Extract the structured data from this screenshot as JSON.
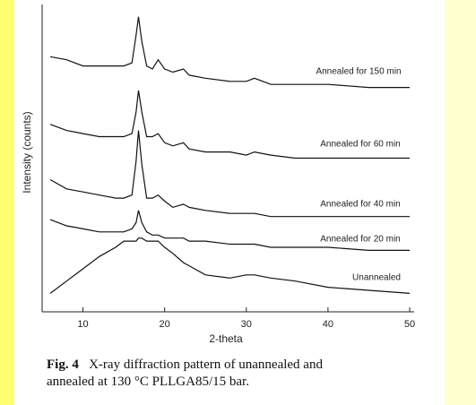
{
  "chart_data": {
    "type": "line",
    "x_label": "2-theta",
    "y_label": "Intensity (counts)",
    "x": [
      6,
      8,
      10,
      12,
      14,
      15,
      16,
      16.5,
      16.8,
      17.2,
      17.8,
      18.5,
      19.2,
      20,
      21,
      22.3,
      23,
      25,
      28,
      30,
      31,
      33,
      36,
      40,
      45,
      50
    ],
    "series": [
      {
        "name": "Annealed for 150 min",
        "color": "#111111",
        "values": [
          83,
          82,
          80,
          80,
          80,
          80,
          81,
          90,
          96,
          88,
          80,
          79,
          82,
          79,
          78,
          79,
          77,
          76,
          75,
          75,
          76,
          74,
          74,
          74,
          73,
          73
        ]
      },
      {
        "name": "Annealed for 60 min",
        "color": "#111111",
        "values": [
          61,
          59,
          58,
          57,
          57,
          57,
          58,
          65,
          72,
          65,
          57,
          57,
          58,
          55,
          54,
          55,
          53,
          52,
          52,
          51,
          52,
          51,
          50,
          50,
          50,
          50
        ]
      },
      {
        "name": "Annealed for 40 min",
        "color": "#111111",
        "values": [
          43,
          40,
          39,
          38,
          37,
          37,
          38,
          49,
          59,
          48,
          37,
          37,
          38,
          36,
          34,
          35,
          34,
          33,
          32,
          32,
          32,
          31,
          31,
          31,
          31,
          31
        ]
      },
      {
        "name": "Annealed for 20 min",
        "color": "#111111",
        "values": [
          30,
          28,
          27,
          26,
          26,
          26,
          27,
          29,
          33,
          29,
          26,
          25,
          25,
          24,
          24,
          24,
          23,
          23,
          22,
          22,
          22,
          21,
          21,
          21,
          20,
          20
        ]
      },
      {
        "name": "Unannealed",
        "color": "#111111",
        "values": [
          6,
          10,
          14,
          18,
          21,
          23,
          23,
          23,
          24,
          24,
          23,
          23,
          23,
          21,
          19,
          16,
          15,
          12,
          11,
          12,
          12,
          11,
          10,
          8,
          7,
          6
        ]
      }
    ],
    "xlim": [
      5,
      50
    ],
    "xticks": [
      10,
      20,
      30,
      40,
      50
    ],
    "ylim": [
      0,
      100
    ]
  },
  "caption": {
    "label": "Fig. 4",
    "lines": [
      "X-ray diffraction pattern of unannealed and",
      "annealed at 130 °C PLLGA85/15 bar."
    ]
  }
}
